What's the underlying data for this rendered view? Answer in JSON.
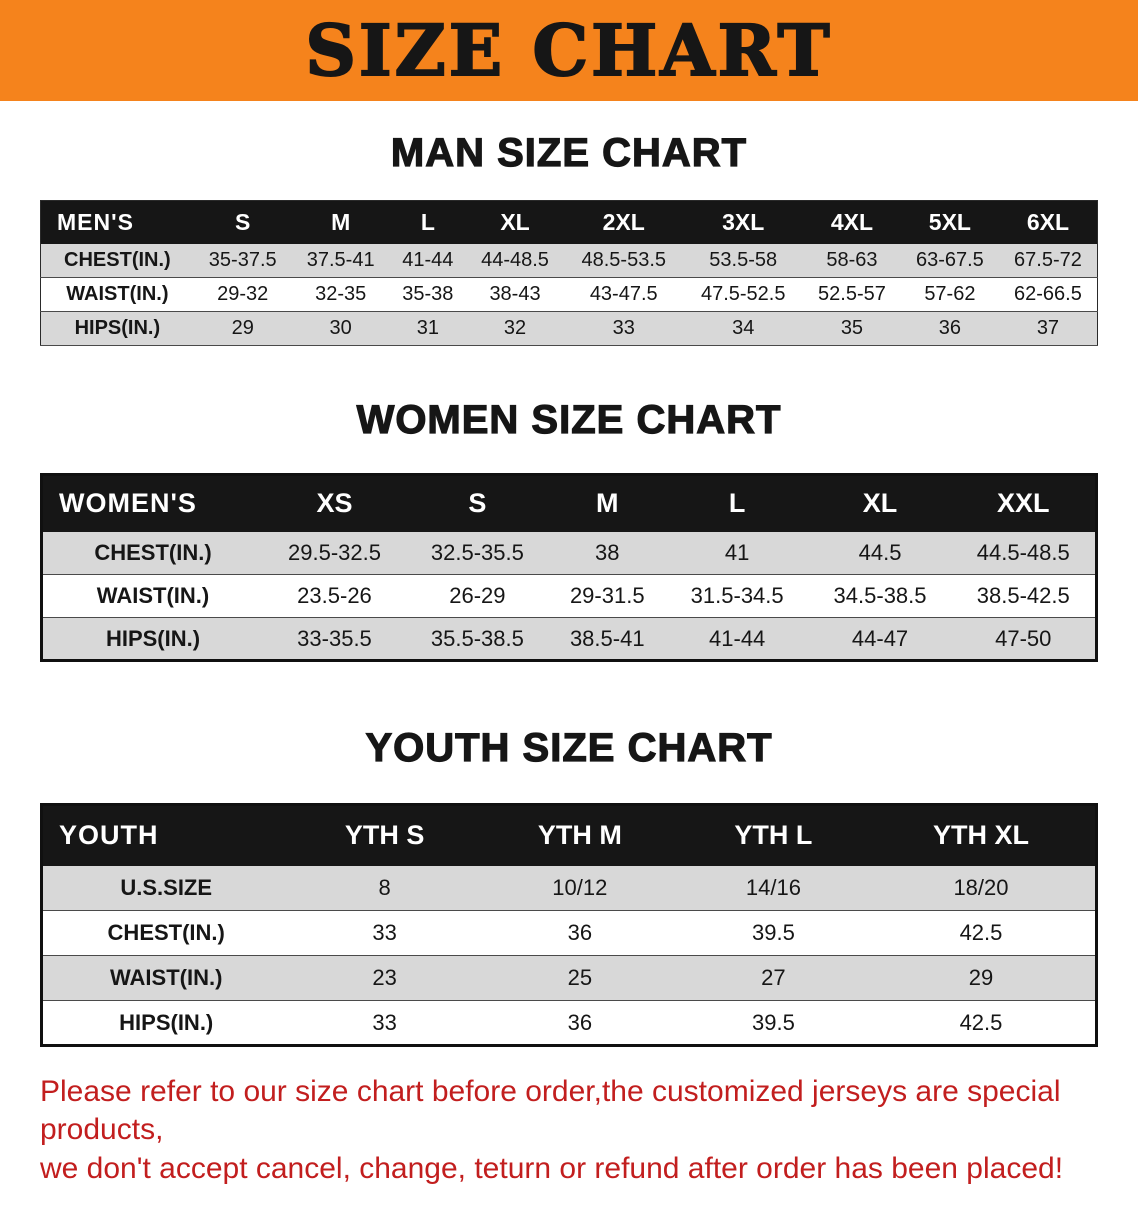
{
  "banner": {
    "title": "SIZE CHART"
  },
  "colors": {
    "banner-bg": "#f5831c",
    "banner-text": "#161616",
    "header-bg": "#161616",
    "header-text": "#ffffff",
    "row-alt": "#d8d8d8",
    "footer-text": "#c21e1e"
  },
  "sections": [
    {
      "heading": "MAN SIZE CHART",
      "table": {
        "header": [
          "MEN'S",
          "S",
          "M",
          "L",
          "XL",
          "2XL",
          "3XL",
          "4XL",
          "5XL",
          "6XL"
        ],
        "rows": [
          [
            "CHEST(IN.)",
            "35-37.5",
            "37.5-41",
            "41-44",
            "44-48.5",
            "48.5-53.5",
            "53.5-58",
            "58-63",
            "63-67.5",
            "67.5-72"
          ],
          [
            "WAIST(IN.)",
            "29-32",
            "32-35",
            "35-38",
            "38-43",
            "43-47.5",
            "47.5-52.5",
            "52.5-57",
            "57-62",
            "62-66.5"
          ],
          [
            "HIPS(IN.)",
            "29",
            "30",
            "31",
            "32",
            "33",
            "34",
            "35",
            "36",
            "37"
          ]
        ]
      }
    },
    {
      "heading": "WOMEN SIZE CHART",
      "table": {
        "header": [
          "WOMEN'S",
          "XS",
          "S",
          "M",
          "L",
          "XL",
          "XXL"
        ],
        "rows": [
          [
            "CHEST(IN.)",
            "29.5-32.5",
            "32.5-35.5",
            "38",
            "41",
            "44.5",
            "44.5-48.5"
          ],
          [
            "WAIST(IN.)",
            "23.5-26",
            "26-29",
            "29-31.5",
            "31.5-34.5",
            "34.5-38.5",
            "38.5-42.5"
          ],
          [
            "HIPS(IN.)",
            "33-35.5",
            "35.5-38.5",
            "38.5-41",
            "41-44",
            "44-47",
            "47-50"
          ]
        ]
      }
    },
    {
      "heading": "YOUTH SIZE CHART",
      "table": {
        "header": [
          "YOUTH",
          "YTH S",
          "YTH M",
          "YTH L",
          "YTH XL"
        ],
        "rows": [
          [
            "U.S.SIZE",
            "8",
            "10/12",
            "14/16",
            "18/20"
          ],
          [
            "CHEST(IN.)",
            "33",
            "36",
            "39.5",
            "42.5"
          ],
          [
            "WAIST(IN.)",
            "23",
            "25",
            "27",
            "29"
          ],
          [
            "HIPS(IN.)",
            "33",
            "36",
            "39.5",
            "42.5"
          ]
        ]
      }
    }
  ],
  "footer": {
    "line1": "Please refer to our size chart before order,the customized jerseys are special products,",
    "line2": "we don't accept cancel, change, teturn or refund after order has been placed!"
  }
}
